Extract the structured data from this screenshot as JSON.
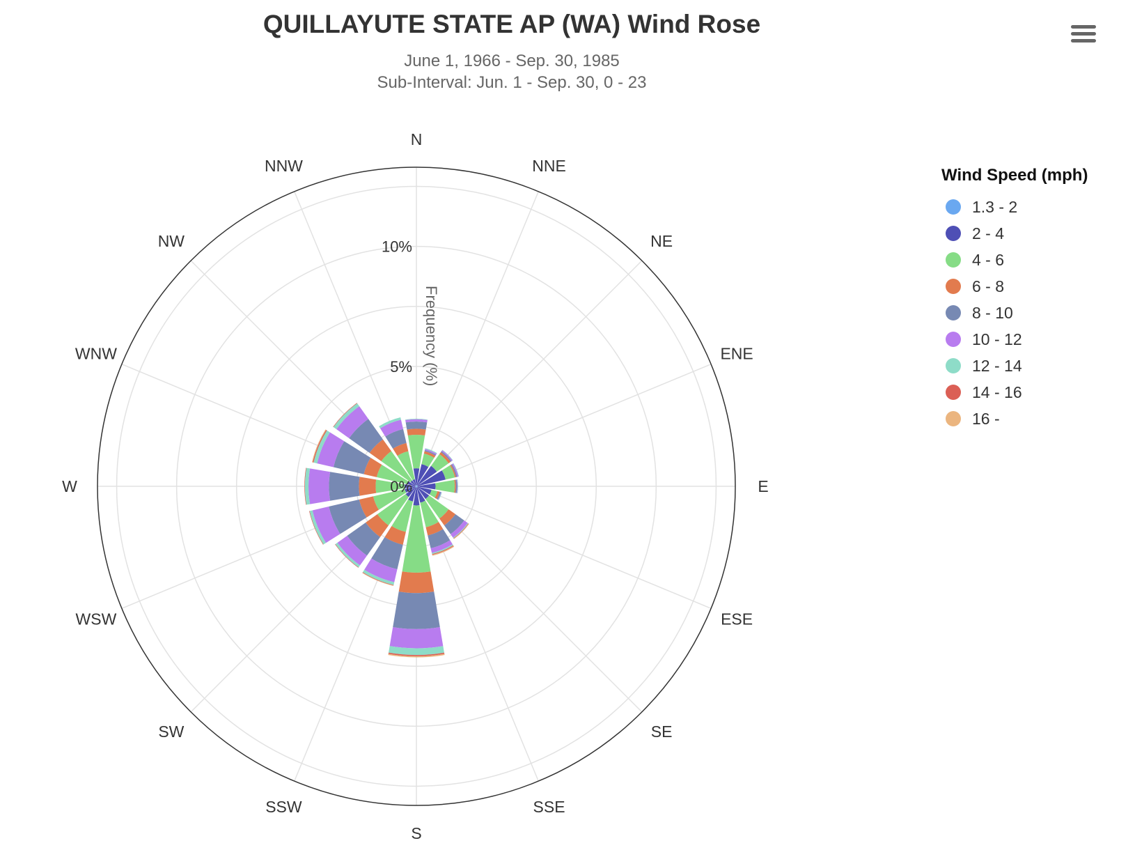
{
  "header": {
    "title": "QUILLAYUTE STATE AP (WA) Wind Rose",
    "subtitle_line1": "June 1, 1966 - Sep. 30, 1985",
    "subtitle_line2": "Sub-Interval: Jun. 1 - Sep. 30, 0 - 23",
    "menu_icon": "hamburger-menu-icon"
  },
  "chart_data": {
    "type": "windrose",
    "yaxis_title": "Frequency (%)",
    "radial_tick_labels": [
      "0%",
      "5%",
      "10%"
    ],
    "radial_ticks": [
      0,
      2.5,
      5,
      7.5,
      10,
      12.5
    ],
    "radial_max": 13.3,
    "directions": [
      "N",
      "NNE",
      "NE",
      "ENE",
      "E",
      "ESE",
      "SE",
      "SSE",
      "S",
      "SSW",
      "SW",
      "WSW",
      "W",
      "WNW",
      "NW",
      "NNW"
    ],
    "legend_title": "Wind Speed (mph)",
    "legend_position": "right",
    "series": [
      {
        "name": "1.3 - 2",
        "color": "#6aa8f0",
        "values": [
          0.05,
          0.05,
          0.05,
          0.05,
          0.05,
          0.05,
          0.05,
          0.05,
          0.05,
          0.05,
          0.05,
          0.05,
          0.05,
          0.05,
          0.05,
          0.05
        ]
      },
      {
        "name": "2 - 4",
        "color": "#4e4fb5",
        "values": [
          0.7,
          0.9,
          1.0,
          1.2,
          0.75,
          0.6,
          0.6,
          0.65,
          0.75,
          0.6,
          0.5,
          0.45,
          0.45,
          0.35,
          0.25,
          0.25
        ]
      },
      {
        "name": "4 - 6",
        "color": "#86dc86",
        "values": [
          1.4,
          0.45,
          0.6,
          0.4,
          0.8,
          0.25,
          1.0,
          1.05,
          2.8,
          1.3,
          1.45,
          1.35,
          1.2,
          1.3,
          1.5,
          1.2
        ]
      },
      {
        "name": "6 - 8",
        "color": "#e27b4e",
        "values": [
          0.25,
          0.1,
          0.1,
          0.05,
          0.05,
          0.1,
          0.35,
          0.35,
          0.85,
          0.55,
          0.6,
          0.6,
          0.7,
          0.55,
          0.6,
          0.35
        ]
      },
      {
        "name": "8 - 10",
        "color": "#7789b3",
        "values": [
          0.3,
          0.05,
          0.05,
          0.05,
          0.05,
          0.05,
          0.45,
          0.55,
          1.5,
          1.05,
          0.95,
          1.3,
          1.25,
          1.3,
          1.05,
          0.6
        ]
      },
      {
        "name": "10 - 12",
        "color": "#b87cef",
        "values": [
          0.1,
          0.05,
          0.05,
          0.05,
          0.02,
          0.02,
          0.18,
          0.2,
          0.8,
          0.55,
          0.5,
          0.7,
          0.85,
          0.7,
          0.65,
          0.4
        ]
      },
      {
        "name": "12 - 14",
        "color": "#8edcc8",
        "values": [
          0.02,
          0.03,
          0.02,
          0.02,
          0.02,
          0.02,
          0.03,
          0.05,
          0.28,
          0.12,
          0.1,
          0.12,
          0.15,
          0.15,
          0.15,
          0.1
        ]
      },
      {
        "name": "14 - 16",
        "color": "#db5f55",
        "values": [
          0,
          0,
          0,
          0,
          0,
          0,
          0.02,
          0.03,
          0.05,
          0.02,
          0.02,
          0.02,
          0.02,
          0.04,
          0.02,
          0
        ]
      },
      {
        "name": "16 -",
        "color": "#ebb57f",
        "values": [
          0,
          0,
          0,
          0,
          0,
          0,
          0.02,
          0.04,
          0.05,
          0.02,
          0,
          0,
          0,
          0.03,
          0,
          0
        ]
      }
    ]
  }
}
